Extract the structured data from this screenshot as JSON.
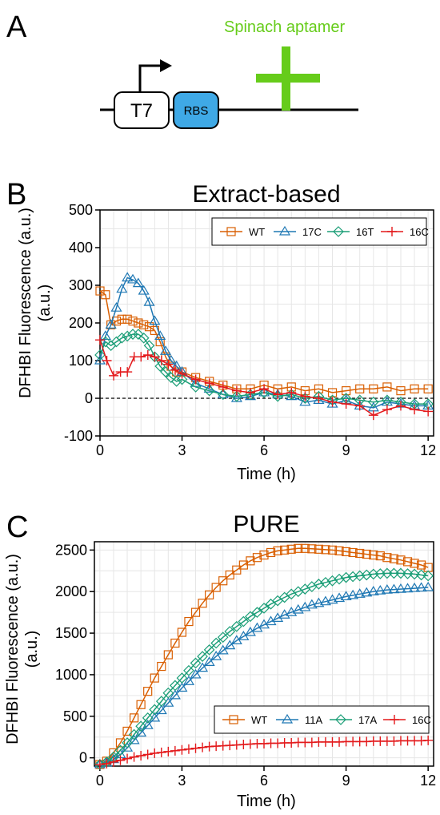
{
  "panels": {
    "a": "A",
    "b": "B",
    "c": "C"
  },
  "schematic": {
    "promoter_label": "T7",
    "rbs_label": "RBS",
    "aptamer_label": "Spinach aptamer",
    "colors": {
      "aptamer": "#66cc1a",
      "rbs": "#3fa9e6",
      "line": "#000000"
    }
  },
  "chart_data": [
    {
      "type": "line",
      "title": "Extract-based",
      "xlabel": "Time (h)",
      "ylabel": "DFHBI Fluorescence (a.u.)",
      "xlim": [
        0,
        12.2
      ],
      "ylim": [
        -100,
        500
      ],
      "xticks": [
        0,
        3,
        6,
        9,
        12
      ],
      "yticks": [
        -100,
        0,
        100,
        200,
        300,
        400,
        500
      ],
      "grid": true,
      "zero_line": "dashed",
      "legend_position": "top",
      "series": [
        {
          "name": "WT",
          "color": "#d95f02",
          "marker": "square",
          "x": [
            0,
            0.2,
            0.4,
            0.6,
            0.8,
            1,
            1.2,
            1.4,
            1.6,
            1.8,
            2,
            2.2,
            2.4,
            2.6,
            2.8,
            3,
            3.5,
            4,
            4.5,
            5,
            5.5,
            6,
            6.5,
            7,
            7.5,
            8,
            8.5,
            9,
            9.5,
            10,
            10.5,
            11,
            11.5,
            12
          ],
          "y": [
            285,
            275,
            195,
            205,
            210,
            210,
            205,
            200,
            195,
            190,
            180,
            150,
            110,
            85,
            70,
            70,
            55,
            45,
            35,
            25,
            25,
            35,
            25,
            30,
            20,
            25,
            15,
            20,
            25,
            25,
            30,
            20,
            25,
            25
          ]
        },
        {
          "name": "17C",
          "color": "#1f78b4",
          "marker": "triangle",
          "x": [
            0,
            0.2,
            0.4,
            0.6,
            0.8,
            1,
            1.2,
            1.4,
            1.6,
            1.8,
            2,
            2.2,
            2.4,
            2.6,
            2.8,
            3,
            3.5,
            4,
            4.5,
            5,
            5.5,
            6,
            6.5,
            7,
            7.5,
            8,
            8.5,
            9,
            9.5,
            10,
            10.5,
            11,
            11.5,
            12
          ],
          "y": [
            100,
            165,
            195,
            240,
            290,
            320,
            315,
            305,
            285,
            255,
            205,
            165,
            125,
            100,
            85,
            70,
            40,
            25,
            10,
            0,
            5,
            15,
            10,
            5,
            -10,
            -5,
            -15,
            -5,
            -20,
            -25,
            -10,
            -15,
            -20,
            -20
          ]
        },
        {
          "name": "16T",
          "color": "#1b9e77",
          "marker": "diamond",
          "x": [
            0,
            0.2,
            0.4,
            0.6,
            0.8,
            1,
            1.2,
            1.4,
            1.6,
            1.8,
            2,
            2.2,
            2.4,
            2.6,
            2.8,
            3,
            3.5,
            4,
            4.5,
            5,
            5.5,
            6,
            6.5,
            7,
            7.5,
            8,
            8.5,
            9,
            9.5,
            10,
            10.5,
            11,
            11.5,
            12
          ],
          "y": [
            115,
            150,
            140,
            150,
            160,
            165,
            170,
            170,
            160,
            140,
            110,
            85,
            70,
            55,
            45,
            50,
            30,
            20,
            10,
            5,
            10,
            15,
            5,
            10,
            0,
            5,
            -5,
            0,
            -5,
            -10,
            -5,
            -10,
            -15,
            -15
          ]
        },
        {
          "name": "16C",
          "color": "#e31a1c",
          "marker": "plus",
          "x": [
            0,
            0.25,
            0.5,
            0.75,
            1,
            1.25,
            1.5,
            1.75,
            2,
            2.25,
            2.5,
            2.75,
            3,
            3.5,
            4,
            4.5,
            5,
            5.5,
            6,
            6.5,
            7,
            7.5,
            8,
            8.5,
            9,
            9.5,
            10,
            10.5,
            11,
            11.5,
            12
          ],
          "y": [
            155,
            100,
            60,
            70,
            70,
            110,
            110,
            115,
            110,
            100,
            90,
            75,
            65,
            50,
            40,
            30,
            20,
            15,
            25,
            10,
            15,
            5,
            0,
            -10,
            -15,
            -20,
            -45,
            -30,
            -20,
            -30,
            -35
          ]
        }
      ]
    },
    {
      "type": "line",
      "title": "PURE",
      "xlabel": "Time (h)",
      "ylabel": "DFHBI Fluorescence (a.u.)",
      "xlim": [
        -0.2,
        12.2
      ],
      "ylim": [
        -100,
        2600
      ],
      "xticks": [
        0,
        3,
        6,
        9,
        12
      ],
      "yticks": [
        0,
        500,
        1000,
        1500,
        2000,
        2500
      ],
      "grid": true,
      "legend_position": "bottom-right",
      "series": [
        {
          "name": "WT",
          "color": "#d95f02",
          "marker": "square",
          "x": [
            0,
            0.25,
            0.5,
            0.75,
            1,
            1.25,
            1.5,
            1.75,
            2,
            2.25,
            2.5,
            2.75,
            3,
            3.25,
            3.5,
            3.75,
            4,
            4.25,
            4.5,
            4.75,
            5,
            5.25,
            5.5,
            5.75,
            6,
            6.25,
            6.5,
            6.75,
            7,
            7.25,
            7.5,
            7.75,
            8,
            8.25,
            8.5,
            8.75,
            9,
            9.25,
            9.5,
            9.75,
            10,
            10.25,
            10.5,
            10.75,
            11,
            11.25,
            11.5,
            11.75,
            12
          ],
          "y": [
            -80,
            -40,
            60,
            180,
            320,
            480,
            640,
            800,
            960,
            1100,
            1240,
            1380,
            1510,
            1640,
            1750,
            1860,
            1960,
            2050,
            2130,
            2200,
            2260,
            2320,
            2370,
            2410,
            2440,
            2470,
            2490,
            2500,
            2510,
            2520,
            2520,
            2515,
            2510,
            2505,
            2500,
            2490,
            2480,
            2470,
            2460,
            2450,
            2440,
            2430,
            2410,
            2395,
            2380,
            2360,
            2340,
            2320,
            2290
          ]
        },
        {
          "name": "11A",
          "color": "#1f78b4",
          "marker": "triangle",
          "x": [
            0,
            0.25,
            0.5,
            0.75,
            1,
            1.25,
            1.5,
            1.75,
            2,
            2.25,
            2.5,
            2.75,
            3,
            3.25,
            3.5,
            3.75,
            4,
            4.25,
            4.5,
            4.75,
            5,
            5.25,
            5.5,
            5.75,
            6,
            6.25,
            6.5,
            6.75,
            7,
            7.25,
            7.5,
            7.75,
            8,
            8.25,
            8.5,
            8.75,
            9,
            9.25,
            9.5,
            9.75,
            10,
            10.25,
            10.5,
            10.75,
            11,
            11.25,
            11.5,
            11.75,
            12
          ],
          "y": [
            -80,
            -60,
            -20,
            40,
            120,
            210,
            300,
            390,
            480,
            570,
            660,
            750,
            840,
            920,
            1000,
            1080,
            1150,
            1220,
            1290,
            1350,
            1410,
            1460,
            1510,
            1560,
            1600,
            1640,
            1680,
            1720,
            1750,
            1780,
            1810,
            1840,
            1860,
            1880,
            1900,
            1920,
            1940,
            1955,
            1970,
            1985,
            2000,
            2010,
            2020,
            2025,
            2030,
            2035,
            2040,
            2045,
            2050
          ]
        },
        {
          "name": "17A",
          "color": "#1b9e77",
          "marker": "diamond",
          "x": [
            0,
            0.25,
            0.5,
            0.75,
            1,
            1.25,
            1.5,
            1.75,
            2,
            2.25,
            2.5,
            2.75,
            3,
            3.25,
            3.5,
            3.75,
            4,
            4.25,
            4.5,
            4.75,
            5,
            5.25,
            5.5,
            5.75,
            6,
            6.25,
            6.5,
            6.75,
            7,
            7.25,
            7.5,
            7.75,
            8,
            8.25,
            8.5,
            8.75,
            9,
            9.25,
            9.5,
            9.75,
            10,
            10.25,
            10.5,
            10.75,
            11,
            11.25,
            11.5,
            11.75,
            12
          ],
          "y": [
            -80,
            -50,
            10,
            90,
            180,
            280,
            380,
            480,
            580,
            680,
            780,
            870,
            960,
            1050,
            1140,
            1220,
            1300,
            1380,
            1450,
            1520,
            1580,
            1640,
            1700,
            1750,
            1800,
            1850,
            1890,
            1930,
            1970,
            2000,
            2030,
            2060,
            2090,
            2110,
            2130,
            2150,
            2170,
            2180,
            2190,
            2200,
            2210,
            2215,
            2220,
            2220,
            2220,
            2215,
            2210,
            2200,
            2190
          ]
        },
        {
          "name": "16C",
          "color": "#e31a1c",
          "marker": "plus",
          "x": [
            0,
            0.25,
            0.5,
            0.75,
            1,
            1.25,
            1.5,
            1.75,
            2,
            2.25,
            2.5,
            2.75,
            3,
            3.25,
            3.5,
            3.75,
            4,
            4.25,
            4.5,
            4.75,
            5,
            5.25,
            5.5,
            5.75,
            6,
            6.25,
            6.5,
            6.75,
            7,
            7.25,
            7.5,
            7.75,
            8,
            8.25,
            8.5,
            8.75,
            9,
            9.25,
            9.5,
            9.75,
            10,
            10.25,
            10.5,
            10.75,
            11,
            11.25,
            11.5,
            11.75,
            12
          ],
          "y": [
            -80,
            -70,
            -50,
            -30,
            -10,
            10,
            25,
            40,
            55,
            65,
            75,
            85,
            95,
            105,
            115,
            125,
            135,
            140,
            145,
            150,
            155,
            160,
            165,
            170,
            170,
            175,
            175,
            180,
            180,
            185,
            185,
            185,
            190,
            190,
            190,
            190,
            195,
            195,
            195,
            195,
            200,
            200,
            200,
            200,
            205,
            205,
            205,
            205,
            210
          ]
        }
      ]
    }
  ]
}
